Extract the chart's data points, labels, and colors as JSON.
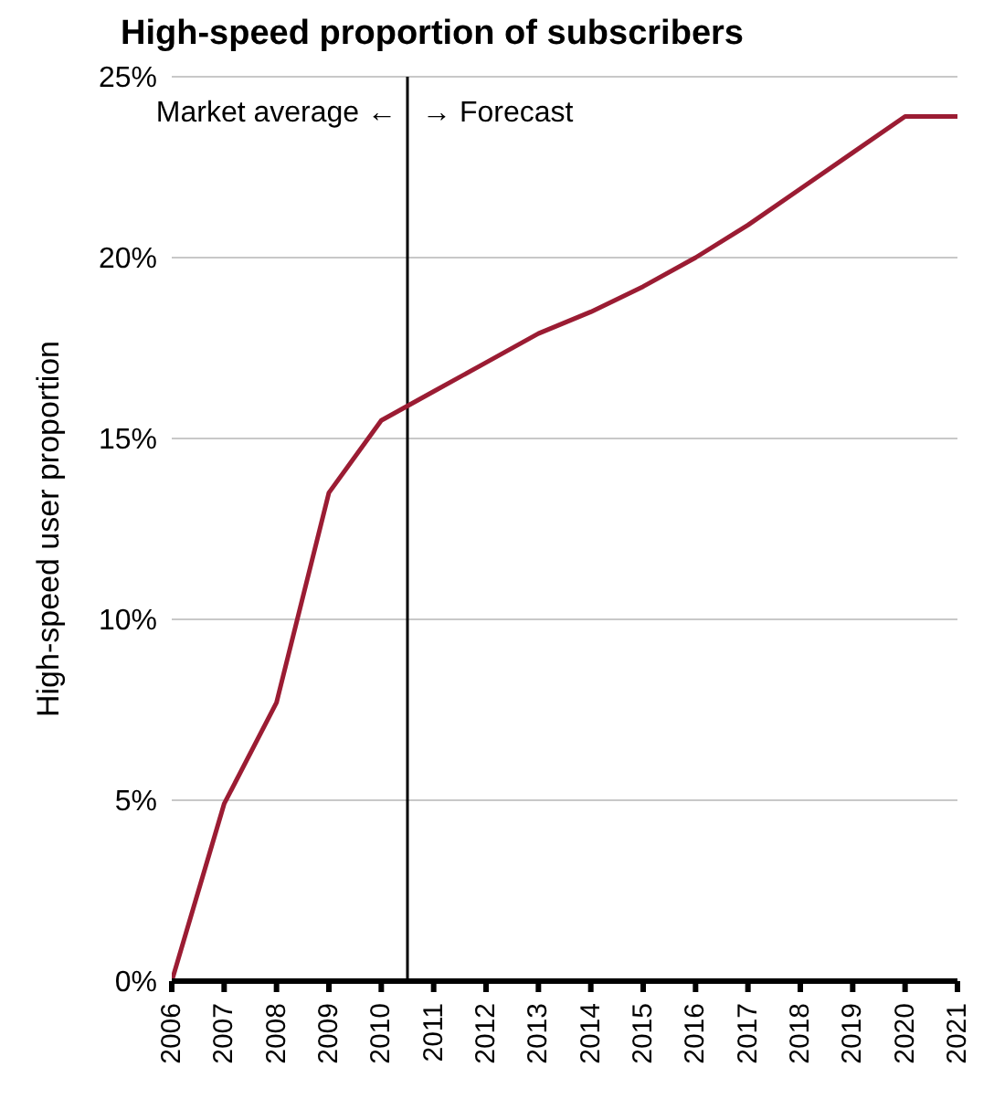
{
  "chart_data": {
    "type": "line",
    "title": "High-speed proportion of subscribers",
    "ylabel": "High-speed user proportion",
    "x": [
      2006,
      2007,
      2008,
      2009,
      2010,
      2011,
      2012,
      2013,
      2014,
      2015,
      2016,
      2017,
      2018,
      2019,
      2020,
      2021
    ],
    "series": [
      {
        "color": "#9b1c33",
        "values": [
          0,
          4.9,
          7.7,
          13.5,
          15.5,
          16.3,
          17.1,
          17.9,
          18.5,
          19.2,
          20.0,
          20.9,
          21.9,
          22.9,
          23.9,
          23.9
        ]
      }
    ],
    "xlim": [
      2006,
      2021
    ],
    "xticks": [
      2006,
      2007,
      2008,
      2009,
      2010,
      2011,
      2012,
      2013,
      2014,
      2015,
      2016,
      2017,
      2018,
      2019,
      2020,
      2021
    ],
    "ylim": [
      0,
      25
    ],
    "yticks": [
      {
        "value": 0,
        "label": "0%"
      },
      {
        "value": 5,
        "label": "5%"
      },
      {
        "value": 10,
        "label": "10%"
      },
      {
        "value": 15,
        "label": "15%"
      },
      {
        "value": 20,
        "label": "20%"
      },
      {
        "value": 25,
        "label": "25%"
      }
    ],
    "grid": "y",
    "marker": "none",
    "line_style": "solid",
    "ref_lines": [
      {
        "axis": "x",
        "value": 2010.5,
        "color": "#000000"
      }
    ],
    "annotations": [
      {
        "text": "Market average ←",
        "x": 2010.5,
        "y": 24
      },
      {
        "text": "→ Forecast",
        "x": 2010.5,
        "y": 24
      }
    ]
  }
}
